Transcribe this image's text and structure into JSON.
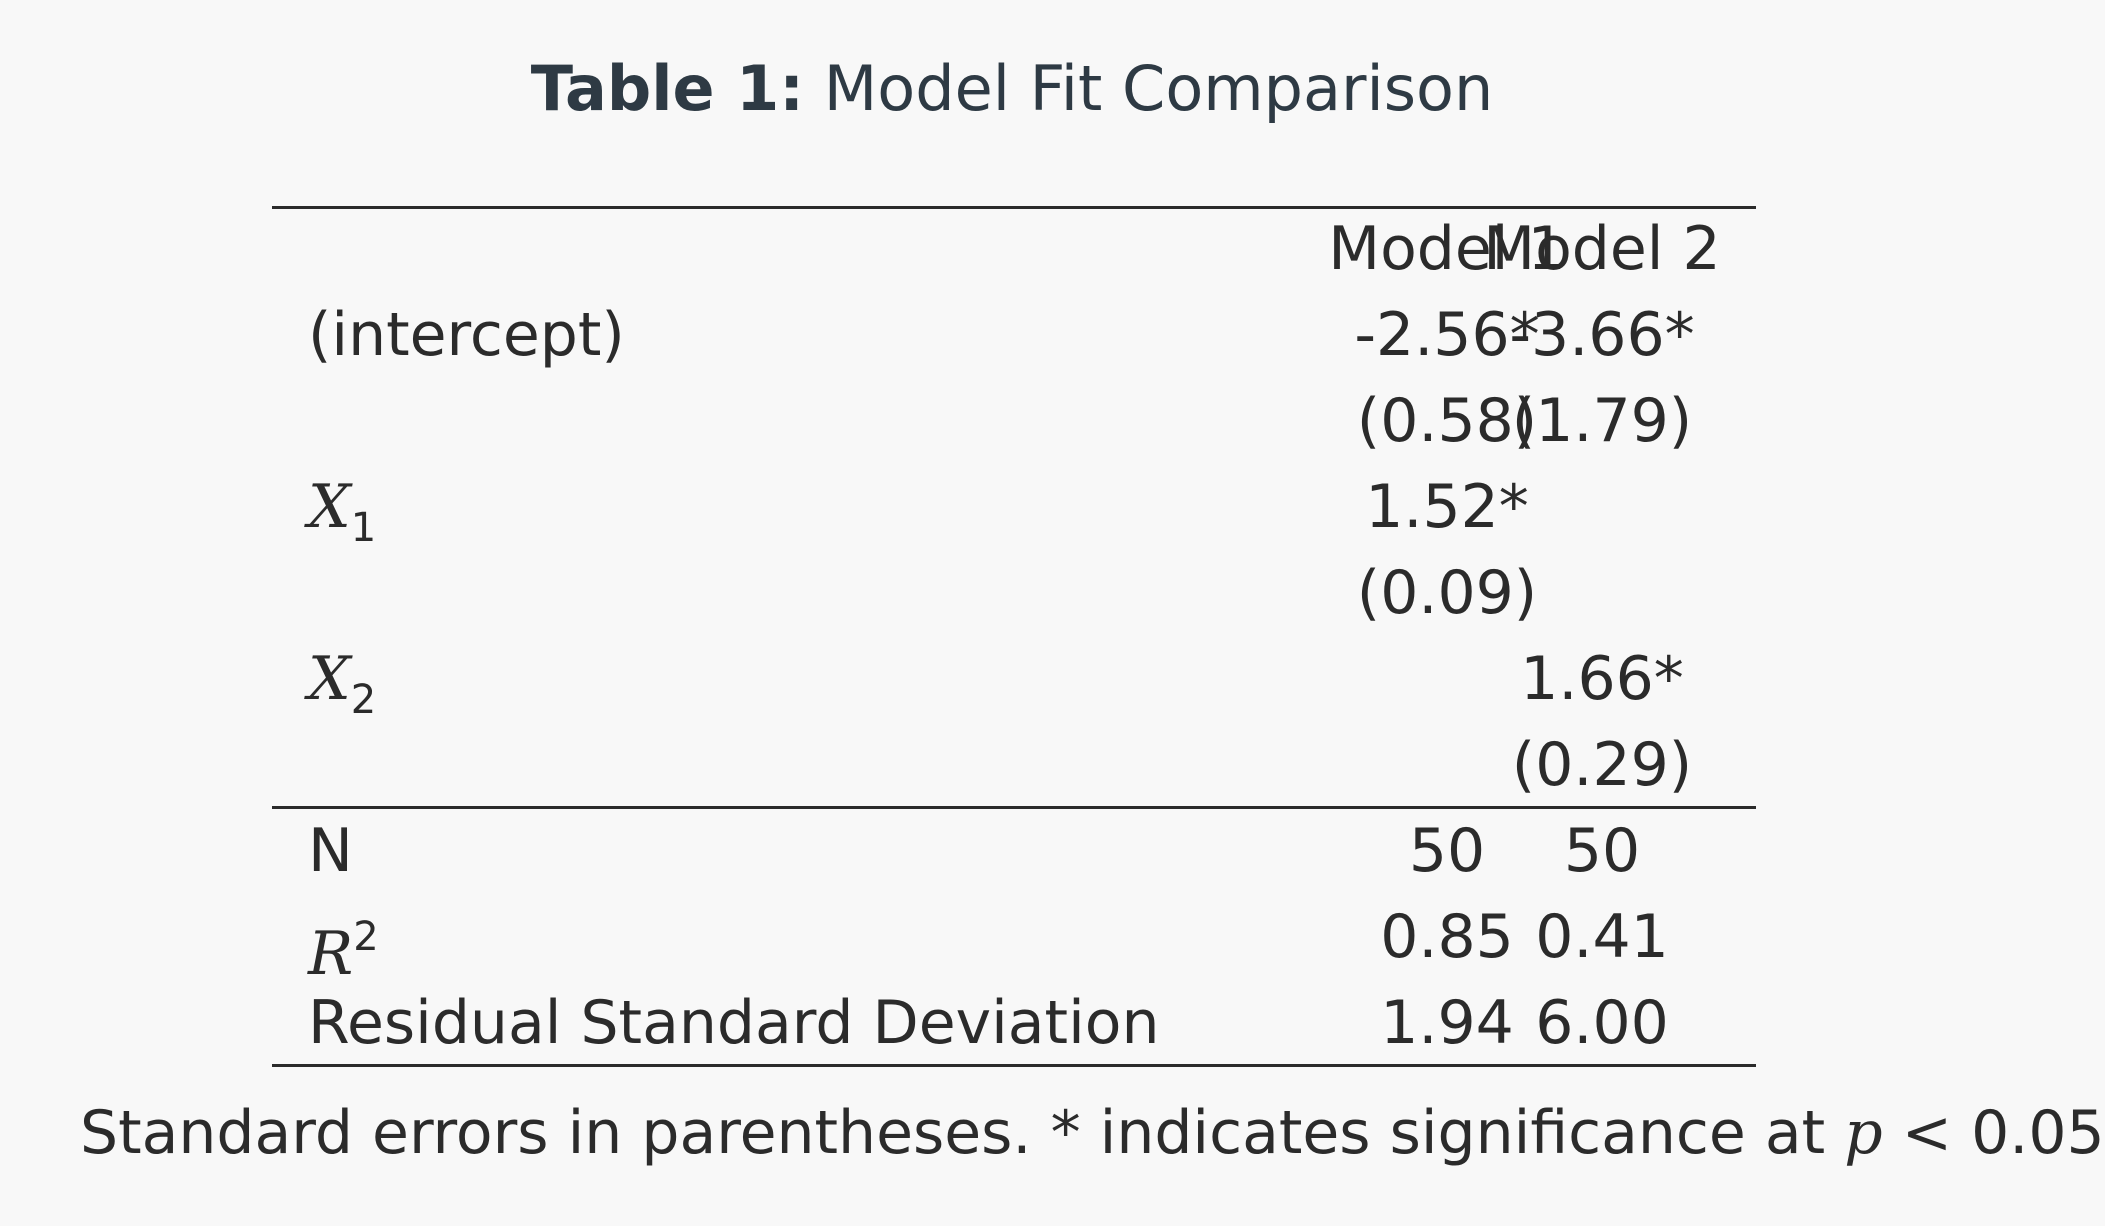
{
  "caption": {
    "label": "Table 1:",
    "title": "Model Fit Comparison"
  },
  "table": {
    "header": {
      "col1": "Model 1",
      "col2": "Model 2"
    },
    "rows": [
      {
        "label": "(intercept)",
        "m1": "-2.56*",
        "m2": "-3.66*"
      },
      {
        "label": "",
        "m1": "(0.58)",
        "m2": "(1.79)"
      },
      {
        "label_var": "X",
        "label_sub": "1",
        "m1": "1.52*",
        "m2": ""
      },
      {
        "label": "",
        "m1": "(0.09)",
        "m2": ""
      },
      {
        "label_var": "X",
        "label_sub": "2",
        "m1": "",
        "m2": "1.66*"
      },
      {
        "label": "",
        "m1": "",
        "m2": "(0.29)"
      }
    ],
    "stats": [
      {
        "label": "N",
        "m1": "50",
        "m2": "50"
      },
      {
        "label_var": "R",
        "label_sup": "2",
        "m1": "0.85",
        "m2": "0.41"
      },
      {
        "label": "Residual Standard Deviation",
        "m1": "1.94",
        "m2": "6.00"
      }
    ]
  },
  "note": {
    "prefix": "Standard errors in parentheses. * indicates significance at",
    "p": "p",
    "op": "<",
    "value": "0.05"
  }
}
